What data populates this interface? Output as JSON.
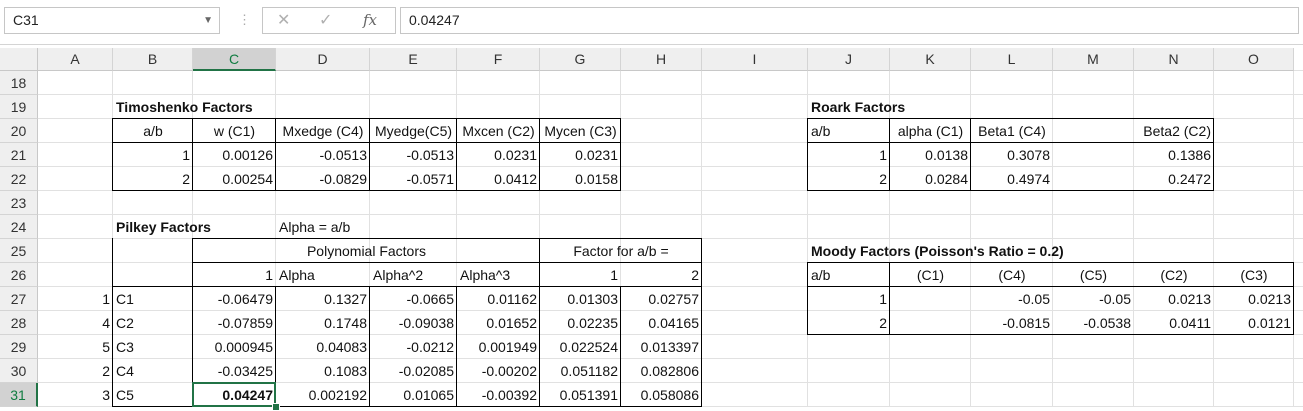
{
  "formula_bar": {
    "name_box": "C31",
    "formula": "0.04247",
    "cancel_icon": "✕",
    "enter_icon": "✓",
    "fx_icon": "fx"
  },
  "columns": [
    "A",
    "B",
    "C",
    "D",
    "E",
    "F",
    "G",
    "H",
    "I",
    "J",
    "K",
    "L",
    "M",
    "N",
    "O"
  ],
  "rows": [
    "18",
    "19",
    "20",
    "21",
    "22",
    "23",
    "24",
    "25",
    "26",
    "27",
    "28",
    "29",
    "30",
    "31"
  ],
  "selected": {
    "column": "C",
    "row": "31"
  },
  "timoshenko": {
    "title": "Timoshenko Factors",
    "headers": [
      "a/b",
      "w (C1)",
      "Mxedge (C4)",
      "Myedge(C5)",
      "Mxcen (C2)",
      "Mycen (C3)"
    ],
    "rows": [
      [
        "1",
        "0.00126",
        "-0.0513",
        "-0.0513",
        "0.0231",
        "0.0231"
      ],
      [
        "2",
        "0.00254",
        "-0.0829",
        "-0.0571",
        "0.0412",
        "0.0158"
      ]
    ]
  },
  "pilkey": {
    "title": "Pilkey Factors",
    "alpha_note": "Alpha = a/b",
    "poly_header": "Polynomial Factors",
    "factor_header": "Factor for a/b =",
    "sub_headers": [
      "1",
      "Alpha",
      "Alpha^2",
      "Alpha^3",
      "1",
      "2"
    ],
    "rows": [
      {
        "idx": "1",
        "name": "C1",
        "vals": [
          "-0.06479",
          "0.1327",
          "-0.0665",
          "0.01162",
          "0.01303",
          "0.02757"
        ]
      },
      {
        "idx": "4",
        "name": "C2",
        "vals": [
          "-0.07859",
          "0.1748",
          "-0.09038",
          "0.01652",
          "0.02235",
          "0.04165"
        ]
      },
      {
        "idx": "5",
        "name": "C3",
        "vals": [
          "0.000945",
          "0.04083",
          "-0.0212",
          "0.001949",
          "0.022524",
          "0.013397"
        ]
      },
      {
        "idx": "2",
        "name": "C4",
        "vals": [
          "-0.03425",
          "0.1083",
          "-0.02085",
          "-0.00202",
          "0.051182",
          "0.082806"
        ]
      },
      {
        "idx": "3",
        "name": "C5",
        "vals": [
          "0.04247",
          "0.002192",
          "0.01065",
          "-0.00392",
          "0.051391",
          "0.058086"
        ]
      }
    ]
  },
  "roark": {
    "title": "Roark Factors",
    "headers": [
      "a/b",
      "alpha (C1)",
      "Beta1 (C4)",
      "",
      "Beta2 (C2)"
    ],
    "rows": [
      [
        "1",
        "0.0138",
        "0.3078",
        "",
        "0.1386"
      ],
      [
        "2",
        "0.0284",
        "0.4974",
        "",
        "0.2472"
      ]
    ]
  },
  "moody": {
    "title": "Moody Factors (Poisson's Ratio = 0.2)",
    "headers": [
      "a/b",
      "(C1)",
      "(C4)",
      "(C5)",
      "(C2)",
      "(C3)"
    ],
    "rows": [
      [
        "1",
        "",
        "-0.05",
        "-0.05",
        "0.0213",
        "0.0213"
      ],
      [
        "2",
        "",
        "-0.0815",
        "-0.0538",
        "0.0411",
        "0.0121"
      ]
    ]
  }
}
